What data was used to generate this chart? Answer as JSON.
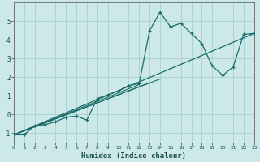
{
  "xlabel": "Humidex (Indice chaleur)",
  "bg_color": "#cce8e8",
  "grid_color": "#aacfcf",
  "line_color": "#1a6b6b",
  "xlim": [
    0,
    23
  ],
  "ylim": [
    -1.5,
    6.0
  ],
  "xticks": [
    0,
    1,
    2,
    3,
    4,
    5,
    6,
    7,
    8,
    9,
    10,
    11,
    12,
    13,
    14,
    15,
    16,
    17,
    18,
    19,
    20,
    21,
    22,
    23
  ],
  "yticks": [
    -1,
    0,
    1,
    2,
    3,
    4,
    5
  ],
  "series": [
    [
      0,
      -1.1
    ],
    [
      1,
      -1.1
    ],
    [
      2,
      -0.6
    ],
    [
      3,
      -0.55
    ],
    [
      4,
      -0.4
    ],
    [
      5,
      -0.15
    ],
    [
      6,
      -0.1
    ],
    [
      7,
      -0.3
    ],
    [
      8,
      0.85
    ],
    [
      9,
      1.05
    ],
    [
      10,
      1.25
    ],
    [
      11,
      1.55
    ],
    [
      12,
      1.65
    ],
    [
      13,
      4.5
    ],
    [
      14,
      5.5
    ],
    [
      15,
      4.7
    ],
    [
      16,
      4.9
    ],
    [
      17,
      4.35
    ],
    [
      18,
      3.8
    ],
    [
      19,
      2.6
    ],
    [
      20,
      2.1
    ],
    [
      21,
      2.55
    ],
    [
      22,
      4.3
    ],
    [
      23,
      4.35
    ]
  ],
  "trend_line": [
    [
      0,
      -1.1
    ],
    [
      23,
      4.35
    ]
  ],
  "extra_lines": [
    [
      [
        0,
        -1.1
      ],
      [
        14,
        1.9
      ]
    ],
    [
      [
        0,
        -1.1
      ],
      [
        13,
        1.7
      ]
    ],
    [
      [
        0,
        -1.1
      ],
      [
        12,
        1.6
      ]
    ]
  ]
}
